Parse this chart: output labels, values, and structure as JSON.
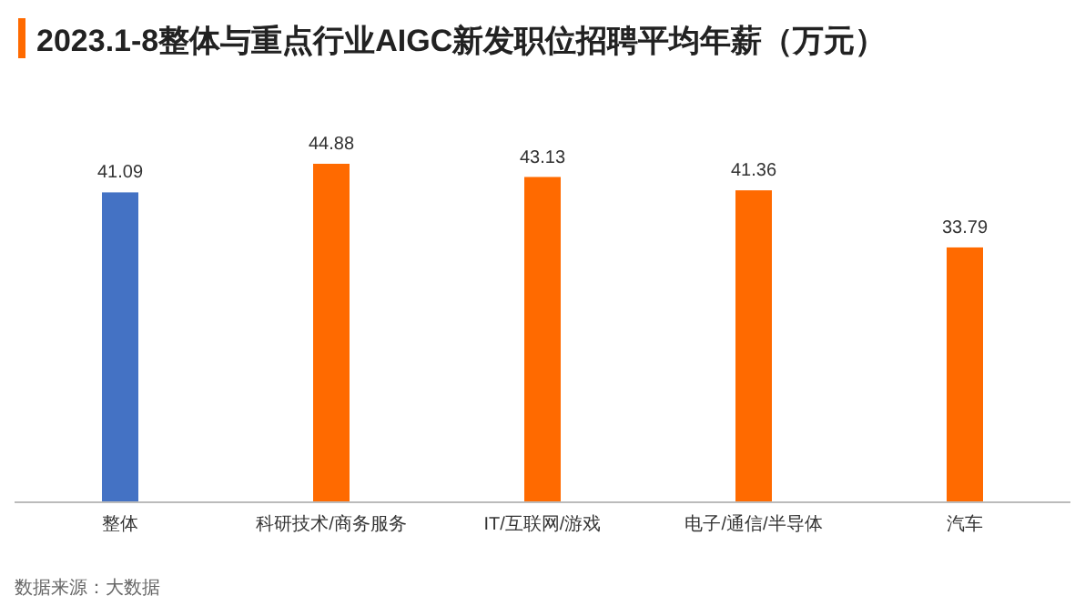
{
  "chart_data": {
    "type": "bar",
    "title": "2023.1-8整体与重点行业AIGC新发职位招聘平均年薪（万元）",
    "categories": [
      "整体",
      "科研技术/商务服务",
      "IT/互联网/游戏",
      "电子/通信/半导体",
      "汽车"
    ],
    "values": [
      41.09,
      44.88,
      43.13,
      41.36,
      33.79
    ],
    "colors": [
      "#4472c4",
      "#ff6a00",
      "#ff6a00",
      "#ff6a00",
      "#ff6a00"
    ],
    "data_labels": true,
    "annotations": [
      "数据来源：大数据"
    ]
  }
}
